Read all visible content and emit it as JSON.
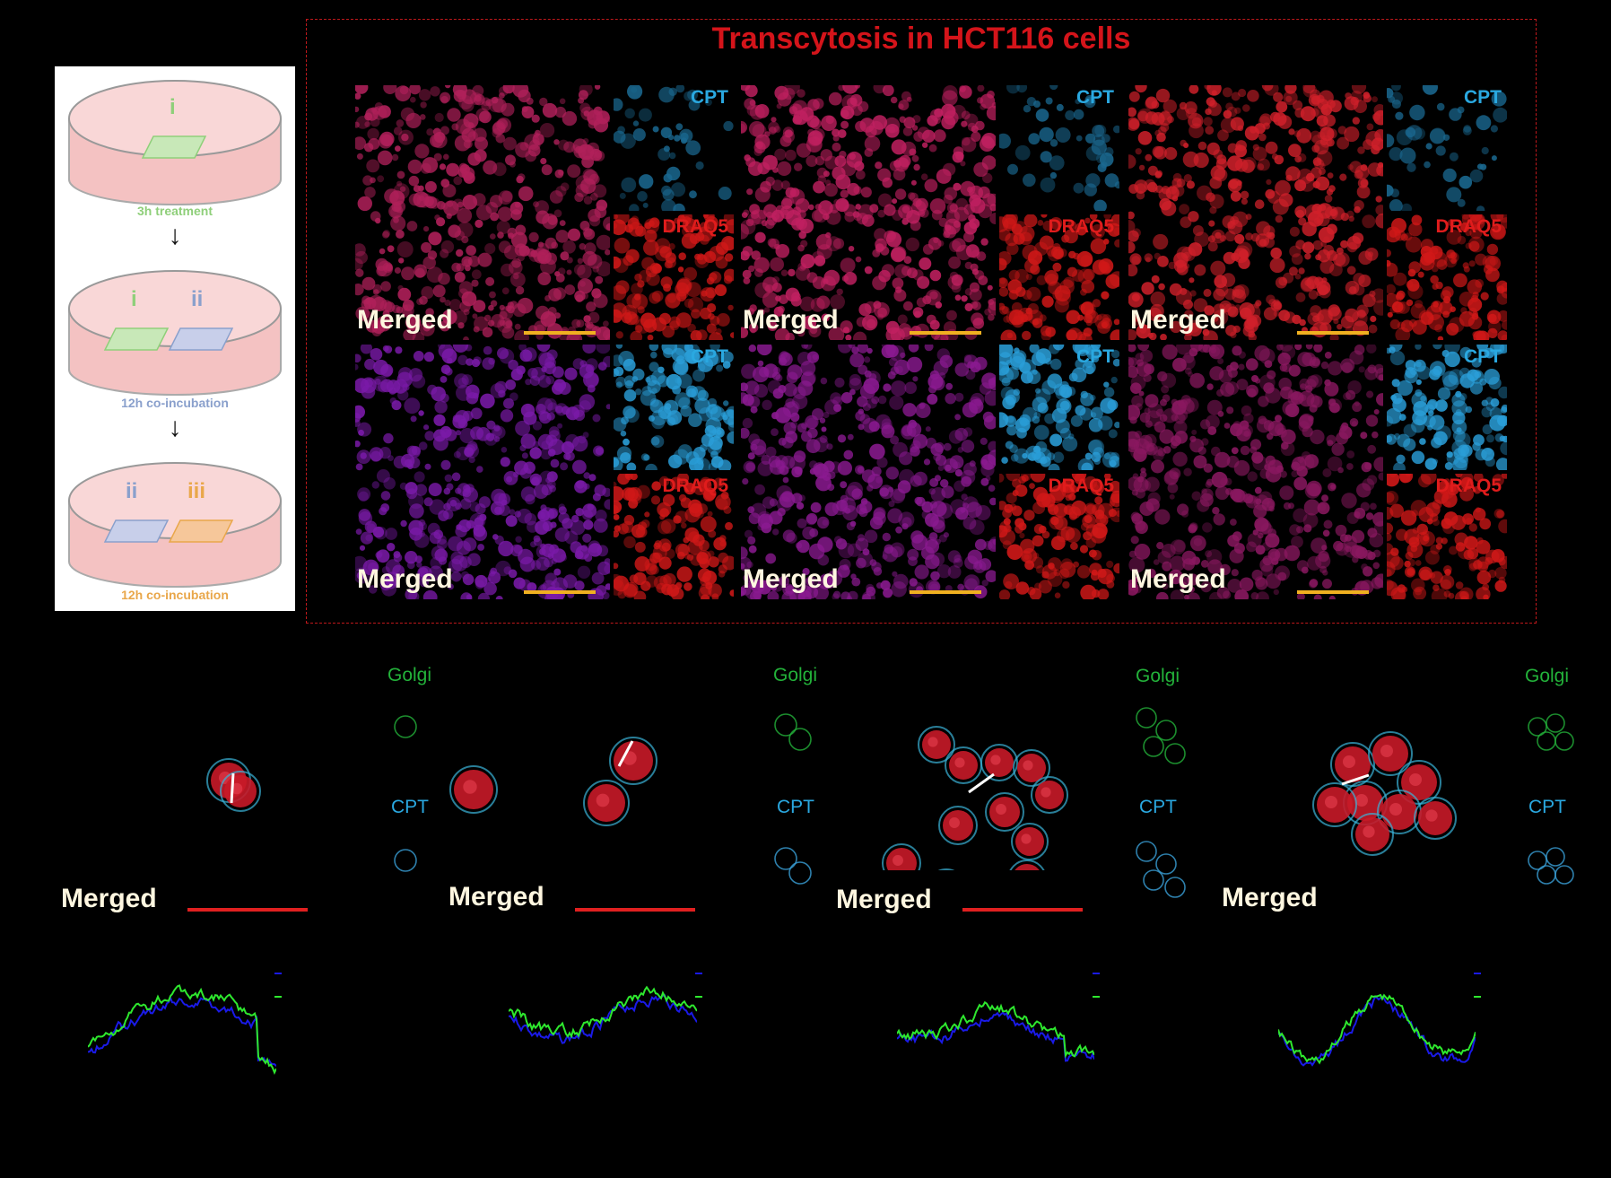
{
  "title": "Transcytosis in HCT116 cells",
  "schematic": {
    "steps": [
      {
        "dish_marks": [
          "i"
        ],
        "caption": "3h treatment",
        "caption_color": "#8fcf7a"
      },
      {
        "dish_marks": [
          "i",
          "ii"
        ],
        "caption": "12h co-incubation",
        "caption_color": "#8aa0cc"
      },
      {
        "dish_marks": [
          "ii",
          "iii"
        ],
        "caption": "12h co-incubation",
        "caption_color": "#e9a74a"
      }
    ],
    "colors": {
      "i": "#8fcf7a",
      "ii": "#8aa0cc",
      "iii": "#e9a74a",
      "dish": "#f4c2c2"
    }
  },
  "upper_grid": {
    "merged_label": "Merged",
    "cpt_label": "CPT",
    "draq5_label": "DRAQ5",
    "rows": [
      {
        "merged_colors": [
          "#b0205a",
          "#c02060",
          "#d0202a"
        ]
      },
      {
        "merged_colors": [
          "#7a1aa8",
          "#8a1a90",
          "#8a1860"
        ]
      }
    ],
    "scale_bar_color": "#f0b020"
  },
  "lower_panels": {
    "merged_label": "Merged",
    "golgi_label": "Golgi",
    "cpt_label": "CPT",
    "scale_bar_color": "#e02020",
    "trace_colors": {
      "cpt": "#1a1ae8",
      "golgi": "#2ee82e"
    }
  }
}
